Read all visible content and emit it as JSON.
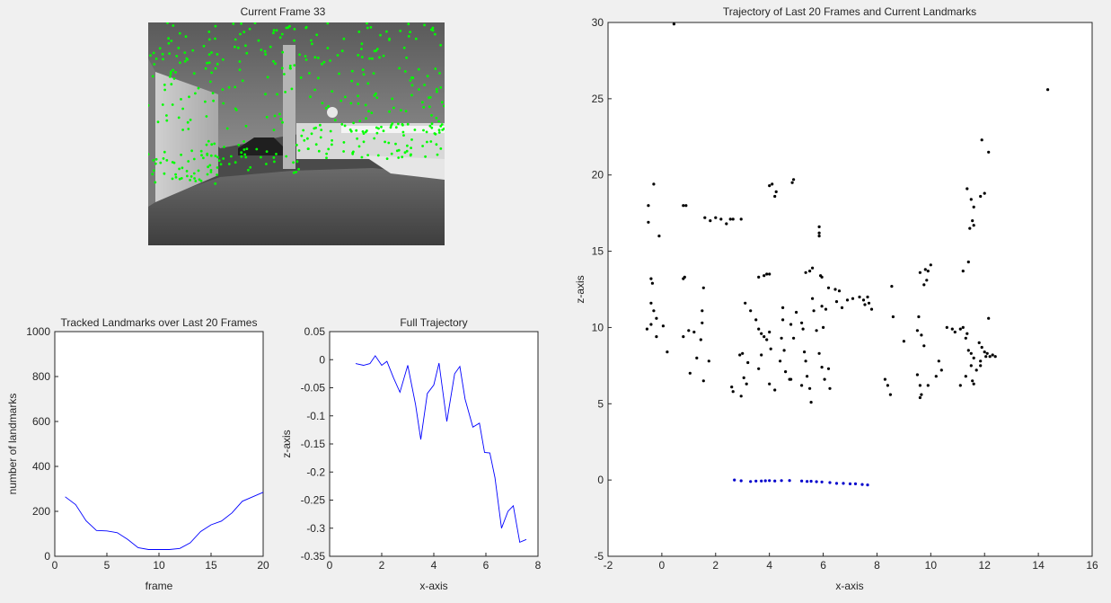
{
  "figure": {
    "background": "#f0f0f0",
    "axis_color": "#262626",
    "line_color": "#0000ff",
    "landmark_color": "#000000",
    "trajectory_color": "#0000cc",
    "keypoint_color": "#00ff00"
  },
  "chart_data": [
    {
      "id": "current_frame",
      "type": "image",
      "title": "Current Frame 33"
    },
    {
      "id": "tracked_landmarks",
      "type": "line",
      "title": "Tracked Landmarks over Last 20 Frames",
      "xlabel": "frame",
      "ylabel": "number of landmarks",
      "xlim": [
        0,
        20
      ],
      "ylim": [
        0,
        1000
      ],
      "xticks": [
        0,
        5,
        10,
        15,
        20
      ],
      "yticks": [
        0,
        200,
        400,
        600,
        800,
        1000
      ],
      "xtick_labels": [
        "0",
        "5",
        "10",
        "15",
        "20"
      ],
      "ytick_labels": [
        "0",
        "200",
        "400",
        "600",
        "800",
        "1000"
      ],
      "grid": false,
      "series": [
        {
          "x": [
            1,
            2,
            3,
            4,
            5,
            6,
            7,
            8,
            9,
            10,
            11,
            12,
            13,
            14,
            15,
            16,
            17,
            18,
            19,
            20
          ],
          "y": [
            265,
            230,
            158,
            115,
            113,
            105,
            75,
            38,
            30,
            30,
            30,
            35,
            60,
            110,
            140,
            157,
            193,
            245,
            265,
            285
          ]
        }
      ]
    },
    {
      "id": "full_trajectory",
      "type": "line",
      "title": "Full Trajectory",
      "xlabel": "x-axis",
      "ylabel": "z-axis",
      "xlim": [
        0,
        8
      ],
      "ylim": [
        -0.35,
        0.05
      ],
      "xticks": [
        0,
        2,
        4,
        6,
        8
      ],
      "yticks": [
        -0.35,
        -0.3,
        -0.25,
        -0.2,
        -0.15,
        -0.1,
        -0.05,
        0,
        0.05
      ],
      "xtick_labels": [
        "0",
        "2",
        "4",
        "6",
        "8"
      ],
      "ytick_labels": [
        "-0.35",
        "-0.3",
        "-0.25",
        "-0.2",
        "-0.15",
        "-0.1",
        "-0.05",
        "0",
        "0.05"
      ],
      "grid": false,
      "series": [
        {
          "x": [
            1.0,
            1.3,
            1.55,
            1.75,
            2.0,
            2.2,
            2.45,
            2.7,
            3.0,
            3.3,
            3.5,
            3.75,
            4.0,
            4.2,
            4.5,
            4.8,
            5.0,
            5.2,
            5.5,
            5.75,
            5.95,
            6.15,
            6.35,
            6.6,
            6.85,
            7.05,
            7.3,
            7.55
          ],
          "y": [
            -0.007,
            -0.01,
            -0.007,
            0.007,
            -0.01,
            -0.003,
            -0.032,
            -0.058,
            -0.01,
            -0.08,
            -0.142,
            -0.06,
            -0.045,
            -0.006,
            -0.11,
            -0.025,
            -0.012,
            -0.07,
            -0.12,
            -0.113,
            -0.165,
            -0.166,
            -0.21,
            -0.3,
            -0.27,
            -0.26,
            -0.325,
            -0.32
          ]
        }
      ]
    },
    {
      "id": "trajectory_landmarks",
      "type": "scatter",
      "title": "Trajectory of Last 20 Frames and Current Landmarks",
      "xlabel": "x-axis",
      "ylabel": "z-axis",
      "xlim": [
        -2,
        16
      ],
      "ylim": [
        -5,
        30
      ],
      "xticks": [
        -2,
        0,
        2,
        4,
        6,
        8,
        10,
        12,
        14,
        16
      ],
      "yticks": [
        -5,
        0,
        5,
        10,
        15,
        20,
        25,
        30
      ],
      "xtick_labels": [
        "-2",
        "0",
        "2",
        "4",
        "6",
        "8",
        "10",
        "12",
        "14",
        "16"
      ],
      "ytick_labels": [
        "-5",
        "0",
        "5",
        "10",
        "15",
        "20",
        "25",
        "30"
      ],
      "grid": false,
      "landmarks": [
        [
          0.45,
          29.9
        ],
        [
          14.35,
          25.6
        ],
        [
          11.9,
          22.3
        ],
        [
          12.15,
          21.5
        ],
        [
          -0.3,
          19.4
        ],
        [
          -0.5,
          18
        ],
        [
          0.8,
          18
        ],
        [
          0.9,
          18
        ],
        [
          4.0,
          19.3
        ],
        [
          4.1,
          19.4
        ],
        [
          4.2,
          18.6
        ],
        [
          4.25,
          18.9
        ],
        [
          4.85,
          19.5
        ],
        [
          4.9,
          19.7
        ],
        [
          11.35,
          19.1
        ],
        [
          11.5,
          18.4
        ],
        [
          11.6,
          17.9
        ],
        [
          11.85,
          18.6
        ],
        [
          12.0,
          18.8
        ],
        [
          -0.5,
          16.9
        ],
        [
          -0.1,
          16
        ],
        [
          1.6,
          17.2
        ],
        [
          1.8,
          17
        ],
        [
          2.0,
          17.2
        ],
        [
          2.2,
          17.1
        ],
        [
          2.4,
          16.8
        ],
        [
          2.55,
          17.1
        ],
        [
          2.65,
          17.1
        ],
        [
          2.95,
          17.1
        ],
        [
          5.85,
          16.6
        ],
        [
          5.85,
          16.2
        ],
        [
          5.85,
          16
        ],
        [
          11.55,
          17
        ],
        [
          11.6,
          16.7
        ],
        [
          11.45,
          16.5
        ],
        [
          -0.4,
          13.2
        ],
        [
          -0.35,
          12.9
        ],
        [
          0.8,
          13.2
        ],
        [
          0.85,
          13.3
        ],
        [
          1.55,
          12.6
        ],
        [
          11.4,
          14.3
        ],
        [
          11.2,
          13.7
        ],
        [
          3.6,
          13.3
        ],
        [
          3.8,
          13.4
        ],
        [
          3.9,
          13.5
        ],
        [
          4.0,
          13.5
        ],
        [
          5.35,
          13.6
        ],
        [
          5.5,
          13.7
        ],
        [
          5.6,
          13.9
        ],
        [
          5.9,
          13.4
        ],
        [
          5.95,
          13.3
        ],
        [
          9.6,
          13.6
        ],
        [
          9.8,
          13.8
        ],
        [
          9.9,
          13.7
        ],
        [
          10.0,
          14.1
        ],
        [
          9.85,
          13.1
        ],
        [
          9.75,
          12.8
        ],
        [
          8.55,
          12.7
        ],
        [
          6.2,
          12.6
        ],
        [
          6.45,
          12.5
        ],
        [
          6.6,
          12.4
        ],
        [
          6.9,
          11.8
        ],
        [
          7.1,
          11.9
        ],
        [
          7.35,
          12
        ],
        [
          7.5,
          11.8
        ],
        [
          7.55,
          11.5
        ],
        [
          7.65,
          12
        ],
        [
          7.7,
          11.6
        ],
        [
          7.8,
          11.2
        ],
        [
          6.5,
          11.7
        ],
        [
          6.7,
          11.3
        ],
        [
          -0.4,
          11.6
        ],
        [
          -0.3,
          11.1
        ],
        [
          -0.2,
          10.6
        ],
        [
          0.05,
          10.1
        ],
        [
          0.2,
          8.4
        ],
        [
          -0.55,
          9.9
        ],
        [
          -0.2,
          9.4
        ],
        [
          -0.4,
          10.2
        ],
        [
          0.8,
          9.4
        ],
        [
          1.0,
          9.8
        ],
        [
          1.2,
          9.7
        ],
        [
          1.5,
          11.1
        ],
        [
          1.5,
          10.3
        ],
        [
          1.45,
          9.2
        ],
        [
          1.3,
          8.0
        ],
        [
          1.75,
          7.8
        ],
        [
          1.05,
          7.0
        ],
        [
          1.55,
          6.5
        ],
        [
          3.1,
          11.6
        ],
        [
          3.3,
          11.1
        ],
        [
          3.5,
          10.5
        ],
        [
          3.6,
          9.9
        ],
        [
          3.7,
          9.6
        ],
        [
          3.8,
          9.4
        ],
        [
          3.9,
          9.2
        ],
        [
          4.0,
          9.7
        ],
        [
          4.05,
          8.6
        ],
        [
          3.7,
          8.2
        ],
        [
          3.6,
          7.3
        ],
        [
          3.2,
          7.7
        ],
        [
          2.9,
          8.2
        ],
        [
          3.0,
          8.3
        ],
        [
          3.05,
          6.7
        ],
        [
          3.15,
          6.3
        ],
        [
          2.95,
          5.5
        ],
        [
          2.6,
          6.1
        ],
        [
          2.65,
          5.8
        ],
        [
          4.5,
          11.3
        ],
        [
          4.5,
          10.5
        ],
        [
          4.45,
          9.3
        ],
        [
          4.55,
          8.5
        ],
        [
          4.4,
          7.8
        ],
        [
          4.6,
          7.1
        ],
        [
          4.75,
          6.6
        ],
        [
          4.9,
          9.3
        ],
        [
          4.8,
          10.2
        ],
        [
          5.0,
          11.0
        ],
        [
          5.2,
          10.3
        ],
        [
          5.25,
          9.9
        ],
        [
          5.3,
          8.4
        ],
        [
          5.35,
          7.8
        ],
        [
          5.4,
          6.8
        ],
        [
          5.5,
          6.0
        ],
        [
          5.55,
          5.1
        ],
        [
          5.6,
          11.9
        ],
        [
          5.65,
          11.1
        ],
        [
          5.75,
          9.8
        ],
        [
          5.85,
          8.3
        ],
        [
          5.95,
          7.4
        ],
        [
          6.05,
          6.6
        ],
        [
          6.25,
          6.0
        ],
        [
          6.2,
          7.3
        ],
        [
          5.95,
          11.4
        ],
        [
          6.1,
          11.2
        ],
        [
          6.0,
          10.0
        ],
        [
          4.0,
          6.3
        ],
        [
          4.2,
          5.9
        ],
        [
          4.8,
          6.6
        ],
        [
          5.2,
          6.2
        ],
        [
          8.3,
          6.6
        ],
        [
          8.4,
          6.2
        ],
        [
          8.5,
          5.6
        ],
        [
          8.6,
          10.7
        ],
        [
          9.0,
          9.1
        ],
        [
          9.5,
          6.9
        ],
        [
          9.6,
          6.2
        ],
        [
          9.65,
          5.6
        ],
        [
          9.6,
          5.4
        ],
        [
          9.5,
          9.8
        ],
        [
          9.55,
          10.7
        ],
        [
          9.65,
          9.5
        ],
        [
          9.75,
          8.8
        ],
        [
          9.9,
          6.2
        ],
        [
          10.3,
          7.8
        ],
        [
          10.4,
          7.2
        ],
        [
          10.2,
          6.8
        ],
        [
          10.6,
          10
        ],
        [
          10.8,
          9.9
        ],
        [
          10.9,
          9.7
        ],
        [
          11.1,
          9.9
        ],
        [
          11.2,
          10
        ],
        [
          11.35,
          9.6
        ],
        [
          11.3,
          9.3
        ],
        [
          11.4,
          8.5
        ],
        [
          11.5,
          8.3
        ],
        [
          11.6,
          8.0
        ],
        [
          11.5,
          7.5
        ],
        [
          11.7,
          7.2
        ],
        [
          11.55,
          6.5
        ],
        [
          11.6,
          6.3
        ],
        [
          11.3,
          6.8
        ],
        [
          11.1,
          6.2
        ],
        [
          11.8,
          9.0
        ],
        [
          11.9,
          8.7
        ],
        [
          12.0,
          8.4
        ],
        [
          12.05,
          8.1
        ],
        [
          12.1,
          8.3
        ],
        [
          12.2,
          8.1
        ],
        [
          12.3,
          8.2
        ],
        [
          12.4,
          8.1
        ],
        [
          12.15,
          10.6
        ],
        [
          11.85,
          7.8
        ],
        [
          11.85,
          7.5
        ]
      ],
      "trajectory": [
        [
          2.7,
          0.0
        ],
        [
          2.95,
          -0.05
        ],
        [
          3.3,
          -0.1
        ],
        [
          3.5,
          -0.07
        ],
        [
          3.7,
          -0.06
        ],
        [
          3.85,
          -0.05
        ],
        [
          4.0,
          -0.04
        ],
        [
          4.2,
          -0.06
        ],
        [
          4.45,
          -0.04
        ],
        [
          4.75,
          -0.03
        ],
        [
          5.2,
          -0.06
        ],
        [
          5.4,
          -0.09
        ],
        [
          5.55,
          -0.08
        ],
        [
          5.75,
          -0.11
        ],
        [
          5.95,
          -0.13
        ],
        [
          6.25,
          -0.17
        ],
        [
          6.5,
          -0.22
        ],
        [
          6.75,
          -0.22
        ],
        [
          7.0,
          -0.25
        ],
        [
          7.2,
          -0.25
        ],
        [
          7.45,
          -0.29
        ],
        [
          7.65,
          -0.32
        ]
      ]
    }
  ]
}
